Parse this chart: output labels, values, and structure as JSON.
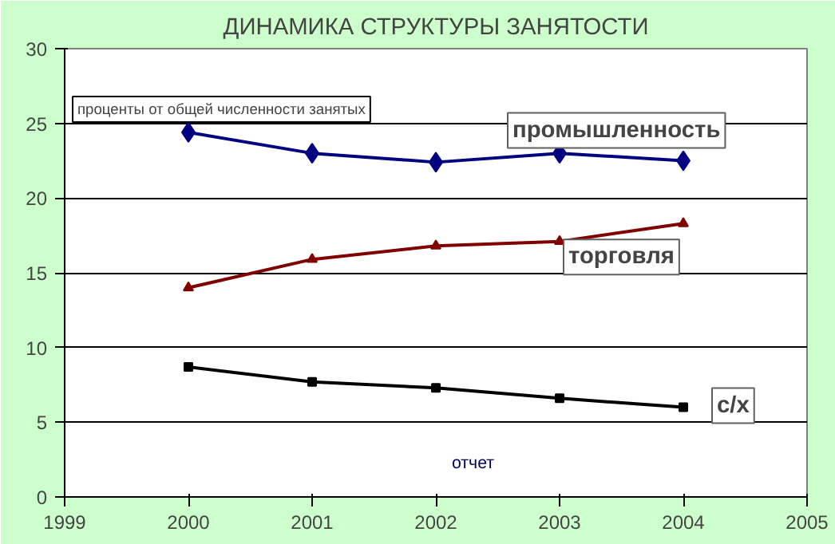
{
  "chart_data": {
    "type": "line",
    "title": "ДИНАМИКА СТРУКТУРЫ ЗАНЯТОСТИ",
    "x": [
      2000,
      2001,
      2002,
      2003,
      2004
    ],
    "series": [
      {
        "name": "промышленность",
        "color": "#000080",
        "marker": "diamond",
        "values": [
          24.4,
          23.0,
          22.4,
          23.0,
          22.5
        ]
      },
      {
        "name": "торговля",
        "color": "#800000",
        "marker": "triangle",
        "values": [
          14.0,
          15.9,
          16.8,
          17.1,
          18.3
        ]
      },
      {
        "name": "с/х",
        "color": "#000000",
        "marker": "square",
        "values": [
          8.7,
          7.7,
          7.3,
          6.6,
          6.0
        ]
      }
    ],
    "annotations": [
      "проценты от общей численности занятых",
      "отчет"
    ],
    "xlim": [
      1999,
      2005
    ],
    "xticks": [
      1999,
      2000,
      2001,
      2002,
      2003,
      2004,
      2005
    ],
    "ylim": [
      0,
      30
    ],
    "yticks": [
      0,
      5,
      10,
      15,
      20,
      25,
      30
    ],
    "grid": "y",
    "legend": false
  }
}
